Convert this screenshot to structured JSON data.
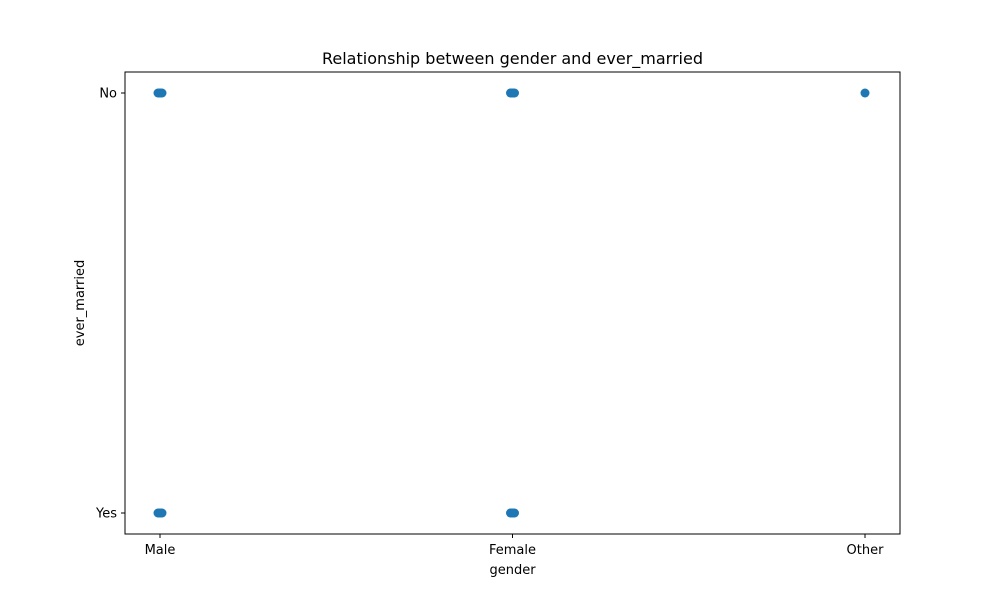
{
  "chart_data": {
    "type": "scatter",
    "title": "Relationship between gender and ever_married",
    "xlabel": "gender",
    "ylabel": "ever_married",
    "x_categories": [
      "Male",
      "Female",
      "Other"
    ],
    "y_categories": [
      "Yes",
      "No"
    ],
    "points": [
      {
        "x": "Male",
        "y": "No"
      },
      {
        "x": "Male",
        "y": "Yes"
      },
      {
        "x": "Female",
        "y": "No"
      },
      {
        "x": "Female",
        "y": "Yes"
      },
      {
        "x": "Other",
        "y": "No"
      }
    ],
    "marker_color": "#1f77b4",
    "grid": false,
    "legend": "none"
  }
}
